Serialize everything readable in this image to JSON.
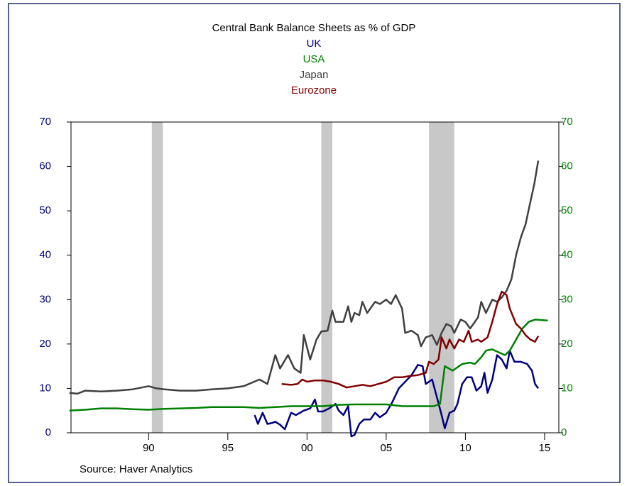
{
  "chart_data": {
    "type": "line",
    "title": "Central Bank Balance Sheets as % of GDP",
    "source": "Source: Haver Analytics",
    "xlim": [
      1985.1,
      2015.9
    ],
    "ylim": [
      0,
      70
    ],
    "y2lim": [
      0,
      70
    ],
    "yticks": [
      0,
      10,
      20,
      30,
      40,
      50,
      60,
      70
    ],
    "y2ticks": [
      0,
      10,
      20,
      30,
      40,
      50,
      60,
      70
    ],
    "xticks": [
      {
        "value": 1990,
        "label": "90"
      },
      {
        "value": 1995,
        "label": "95"
      },
      {
        "value": 2000,
        "label": "00"
      },
      {
        "value": 2005,
        "label": "05"
      },
      {
        "value": 2010,
        "label": "10"
      },
      {
        "value": 2015,
        "label": "15"
      }
    ],
    "recessions": [
      [
        1990.2,
        1990.9
      ],
      [
        2000.9,
        2001.6
      ],
      [
        2007.7,
        2009.3
      ]
    ],
    "series": [
      {
        "name": "UK",
        "color": "#00007f",
        "x": [
          1996.7,
          1996.9,
          1997.2,
          1997.5,
          1997.8,
          1998,
          1998.3,
          1998.6,
          1999,
          1999.3,
          1999.8,
          2000.2,
          2000.5,
          2000.7,
          2001,
          2001.4,
          2001.8,
          2002,
          2002.3,
          2002.6,
          2002.8,
          2003,
          2003.3,
          2003.6,
          2004,
          2004.3,
          2004.6,
          2005,
          2005.4,
          2005.8,
          2006.2,
          2006.6,
          2007,
          2007.3,
          2007.5,
          2007.9,
          2008.2,
          2008.5,
          2008.7,
          2009,
          2009.3,
          2009.5,
          2009.8,
          2010.1,
          2010.4,
          2010.7,
          2011,
          2011.2,
          2011.4,
          2011.7,
          2012,
          2012.3,
          2012.6,
          2012.8,
          2013.1,
          2013.5,
          2013.9,
          2014.2,
          2014.4,
          2014.6
        ],
        "values": [
          4,
          2,
          4.5,
          2,
          2.2,
          2.5,
          1.8,
          0.8,
          4.5,
          4,
          5,
          5.5,
          7.5,
          4.8,
          4.8,
          5.5,
          6.5,
          5,
          4,
          6,
          -0.8,
          -0.5,
          2,
          3,
          3,
          4.5,
          3.5,
          4.5,
          7,
          10,
          11.5,
          13,
          15.3,
          15,
          11,
          12,
          8,
          4,
          1,
          4.5,
          5,
          6.5,
          11,
          12.5,
          12.5,
          9.5,
          10.5,
          13.5,
          9,
          12,
          17.5,
          16.5,
          14.5,
          18.5,
          16,
          16,
          15.5,
          14,
          11,
          10
        ]
      },
      {
        "name": "USA",
        "color": "#008000",
        "x": [
          1985,
          1986,
          1987,
          1988,
          1989,
          1990,
          1991,
          1992,
          1993,
          1994,
          1995,
          1996,
          1997,
          1998,
          1999,
          2000,
          2001,
          2002,
          2003,
          2004,
          2005,
          2006,
          2007,
          2008,
          2008.4,
          2008.7,
          2009.2,
          2009.8,
          2010.3,
          2010.6,
          2011,
          2011.3,
          2011.7,
          2012,
          2012.5,
          2012.8,
          2013.2,
          2013.6,
          2014,
          2014.4,
          2014.8,
          2015.2
        ],
        "values": [
          5,
          5.2,
          5.5,
          5.5,
          5.3,
          5.2,
          5.4,
          5.5,
          5.6,
          5.8,
          5.8,
          5.8,
          5.6,
          5.8,
          6,
          6,
          6,
          6.3,
          6.4,
          6.4,
          6.4,
          6,
          6,
          6,
          6.5,
          15,
          14,
          15.5,
          15.8,
          15.5,
          17,
          18.5,
          18.8,
          18.3,
          17.5,
          18.5,
          21,
          23.5,
          25,
          25.5,
          25.4,
          25.3
        ]
      },
      {
        "name": "Japan",
        "color": "#404040",
        "x": [
          1985,
          1985.5,
          1986,
          1987,
          1988,
          1989,
          1990,
          1990.5,
          1991,
          1992,
          1993,
          1994,
          1995,
          1996,
          1997,
          1997.5,
          1998,
          1998.3,
          1998.8,
          1999.2,
          1999.6,
          1999.8,
          2000.2,
          2000.6,
          2000.9,
          2001.3,
          2001.6,
          2001.8,
          2002.3,
          2002.6,
          2002.8,
          2003,
          2003.3,
          2003.5,
          2003.8,
          2004.3,
          2004.6,
          2005,
          2005.3,
          2005.6,
          2006,
          2006.2,
          2006.6,
          2007,
          2007.2,
          2007.5,
          2007.9,
          2008.2,
          2008.5,
          2008.8,
          2009.1,
          2009.3,
          2009.7,
          2010,
          2010.3,
          2010.8,
          2011,
          2011.3,
          2011.7,
          2012,
          2012.3,
          2012.6,
          2012.9,
          2013.2,
          2013.5,
          2013.8,
          2014.1,
          2014.35,
          2014.6
        ],
        "values": [
          9,
          8.8,
          9.5,
          9.3,
          9.5,
          9.8,
          10.5,
          10,
          9.8,
          9.5,
          9.5,
          9.8,
          10,
          10.5,
          12,
          11,
          17.5,
          14.5,
          17.5,
          14.5,
          13.5,
          22,
          16.5,
          21,
          22.8,
          23,
          27.5,
          25,
          25,
          28.5,
          25,
          27,
          26.5,
          29.5,
          27,
          29.5,
          29,
          30,
          29,
          31,
          28,
          22.5,
          23,
          22,
          19.5,
          21.5,
          22,
          19.8,
          22.5,
          24.5,
          24,
          22.5,
          25.5,
          25,
          23.5,
          26,
          29.5,
          27,
          30,
          29.5,
          30.5,
          32,
          34.5,
          40,
          44,
          47,
          52,
          56,
          61.3
        ]
      },
      {
        "name": "Eurozone",
        "color": "#800000",
        "x": [
          1998.4,
          1999,
          1999.4,
          1999.7,
          2000,
          2000.5,
          2001,
          2001.5,
          2002,
          2002.5,
          2003,
          2003.5,
          2004,
          2004.5,
          2005,
          2005.5,
          2006,
          2006.5,
          2007,
          2007.5,
          2007.7,
          2008,
          2008.3,
          2008.5,
          2008.8,
          2009,
          2009.3,
          2009.6,
          2009.9,
          2010.2,
          2010.4,
          2010.8,
          2011,
          2011.4,
          2011.7,
          2012,
          2012.3,
          2012.6,
          2012.8,
          2013.2,
          2013.5,
          2013.8,
          2014.1,
          2014.4,
          2014.6
        ],
        "values": [
          11,
          10.8,
          11,
          12,
          11.5,
          11.8,
          11.8,
          11.5,
          11,
          10.2,
          10.5,
          10.8,
          10.5,
          11,
          11.5,
          12.5,
          12.5,
          12.8,
          13,
          13.5,
          16,
          15.5,
          16.5,
          21.5,
          19,
          21,
          19,
          21,
          20.5,
          23,
          20.5,
          21,
          20.5,
          21.5,
          25,
          29,
          31.8,
          31,
          28,
          24.5,
          23.5,
          22,
          21,
          20.5,
          21.8
        ]
      }
    ]
  }
}
